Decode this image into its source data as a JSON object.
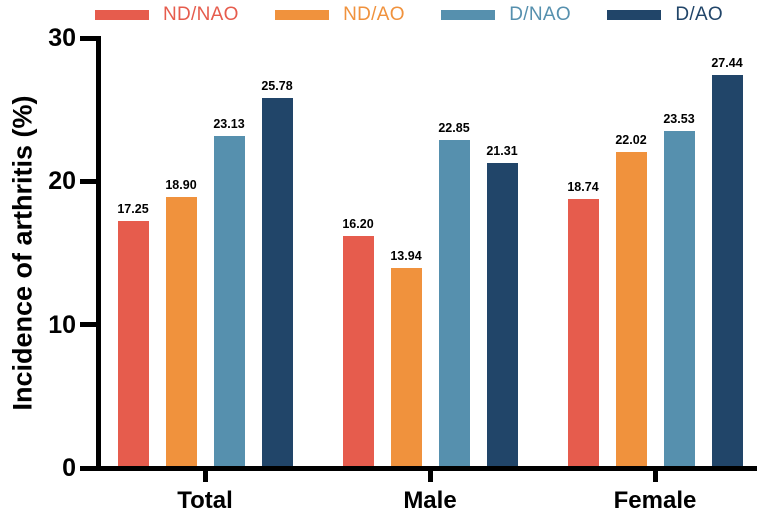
{
  "chart_data": {
    "type": "bar",
    "title": "",
    "ylabel": "Incidence of arthritis (%)",
    "xlabel": "",
    "ylim": [
      0,
      30
    ],
    "yticks": [
      0,
      10,
      20,
      30
    ],
    "grid": false,
    "legend_position": "top",
    "value_labels": true,
    "axis_color": "#000000",
    "categories": [
      "Total",
      "Male",
      "Female"
    ],
    "series": [
      {
        "name": "ND/NAO",
        "color": "#E65C4D",
        "values": [
          17.25,
          16.2,
          18.74
        ]
      },
      {
        "name": "ND/AO",
        "color": "#F0923D",
        "values": [
          18.9,
          13.94,
          22.02
        ]
      },
      {
        "name": "D/NAO",
        "color": "#5690AE",
        "values": [
          23.13,
          22.85,
          23.53
        ]
      },
      {
        "name": "D/AO",
        "color": "#214569",
        "values": [
          25.78,
          21.31,
          27.44
        ]
      }
    ]
  }
}
